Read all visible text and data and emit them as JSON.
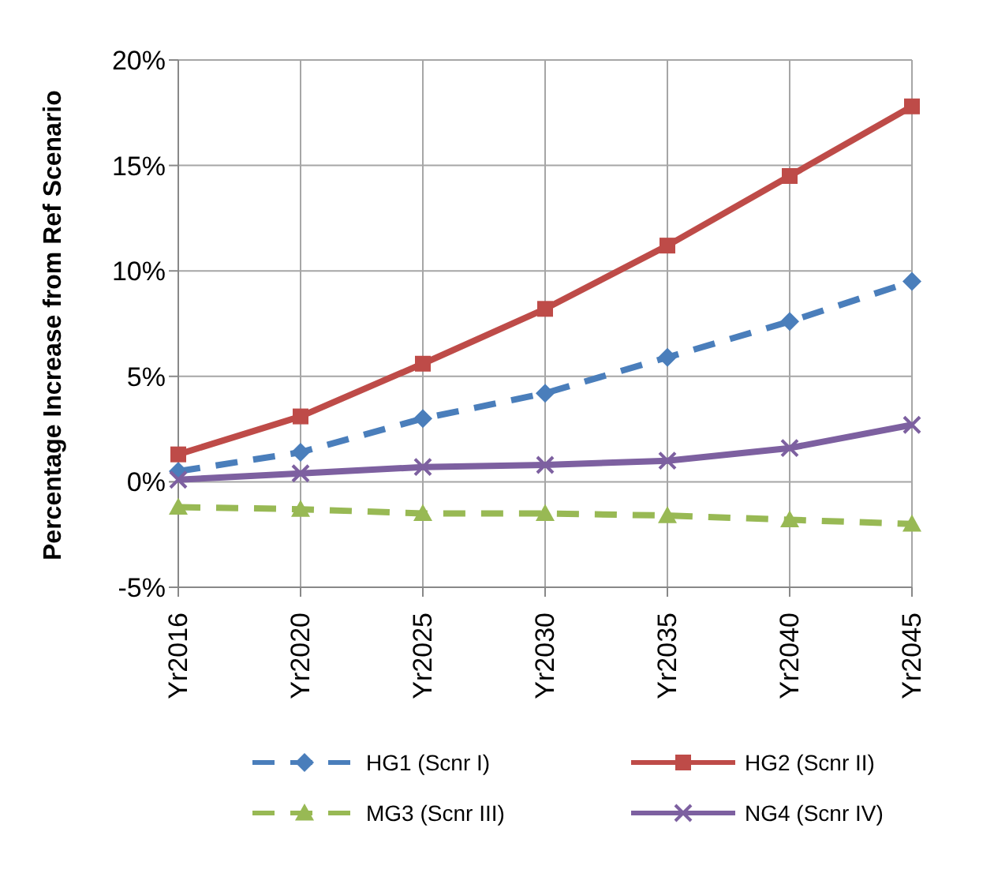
{
  "chart_data": {
    "type": "line",
    "ylabel": "Percentage Increase from Ref  Scenario",
    "categories": [
      "Yr2016",
      "Yr2020",
      "Yr2025",
      "Yr2030",
      "Yr2035",
      "Yr2040",
      "Yr2045"
    ],
    "ylim": [
      -5,
      20
    ],
    "yticks": [
      {
        "value": -5,
        "label": "-5%"
      },
      {
        "value": 0,
        "label": "0%"
      },
      {
        "value": 5,
        "label": "5%"
      },
      {
        "value": 10,
        "label": "10%"
      },
      {
        "value": 15,
        "label": "15%"
      },
      {
        "value": 20,
        "label": "20%"
      }
    ],
    "grid": true,
    "legend": "bottom",
    "series": [
      {
        "name": "HG1 (Scnr I)",
        "color": "#4a7ebb",
        "marker": "diamond",
        "line_style": "dashed",
        "values": [
          0.5,
          1.4,
          3.0,
          4.2,
          5.9,
          7.6,
          9.5
        ]
      },
      {
        "name": "HG2 (Scnr II)",
        "color": "#be4b48",
        "marker": "square",
        "line_style": "solid",
        "values": [
          1.3,
          3.1,
          5.6,
          8.2,
          11.2,
          14.5,
          17.8
        ]
      },
      {
        "name": "MG3 (Scnr III)",
        "color": "#98b954",
        "marker": "triangle",
        "line_style": "dashed",
        "values": [
          -1.2,
          -1.3,
          -1.5,
          -1.5,
          -1.6,
          -1.8,
          -2.0
        ]
      },
      {
        "name": "NG4 (Scnr IV)",
        "color": "#7d60a0",
        "marker": "cross",
        "line_style": "solid",
        "values": [
          0.1,
          0.4,
          0.7,
          0.8,
          1.0,
          1.6,
          2.7
        ]
      }
    ]
  }
}
